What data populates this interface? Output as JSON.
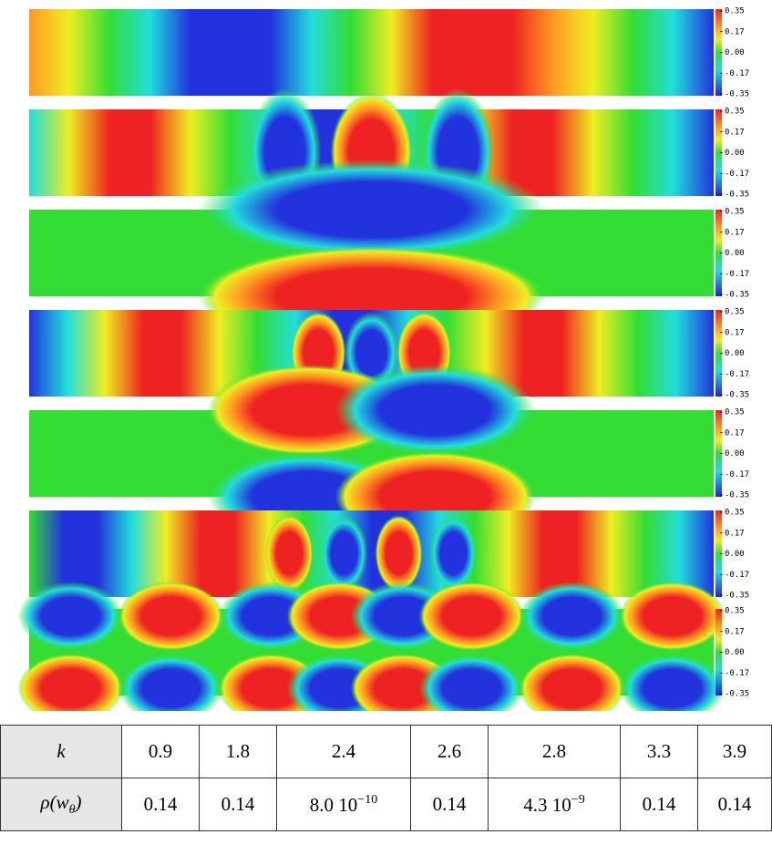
{
  "colorbar_ticks": [
    "0.35",
    "0.17",
    "0.00",
    "-0.17",
    "-0.35"
  ],
  "table": {
    "rows": [
      {
        "label": "k",
        "cells": [
          "0.9",
          "1.8",
          "2.4",
          "2.6",
          "2.8",
          "3.3",
          "3.9"
        ]
      },
      {
        "label": {
          "text": "ρ(w",
          "sub": "θ",
          "tail": ")"
        },
        "cells": [
          "0.14",
          "0.14",
          {
            "base": "8.0 10",
            "exp": "−10"
          },
          "0.14",
          {
            "base": "4.3 10",
            "exp": "−9"
          },
          "0.14",
          "0.14"
        ]
      }
    ]
  }
}
